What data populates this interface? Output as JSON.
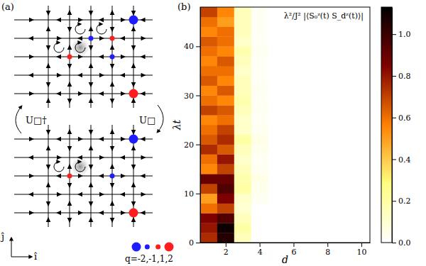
{
  "diagram": {
    "panel_label": "(a)",
    "top_lattice": [
      {
        "col": 4,
        "row": 0,
        "q": -2
      },
      {
        "col": 2,
        "row": 1,
        "q": -1
      },
      {
        "col": 3,
        "row": 1,
        "q": 1
      },
      {
        "col": 1,
        "row": 2,
        "q": 1
      },
      {
        "col": 3,
        "row": 2,
        "q": -1
      },
      {
        "col": 4,
        "row": 4,
        "q": 2
      }
    ],
    "bottom_lattice": [
      {
        "col": 4,
        "row": 0,
        "q": -2
      },
      {
        "col": 3,
        "row": 2,
        "q": -1
      },
      {
        "col": 1,
        "row": 2,
        "q": 1
      },
      {
        "col": 4,
        "row": 4,
        "q": 2
      }
    ],
    "operator_forward": "U□",
    "operator_backward": "U□†",
    "axis_x": "î",
    "axis_y": "ĵ",
    "legend_charges": [
      -2,
      -1,
      1,
      2
    ],
    "legend_text": "q=-2,-1,1,2"
  },
  "chart_data": {
    "type": "heatmap",
    "panel_label": "(b)",
    "annotation": "λ²/J² |⟨S₀ᶻ(t) S_dᶻ(t)⟩|",
    "xlabel": "d",
    "ylabel": "λt",
    "x_edges": [
      0.5,
      1.5,
      2.5,
      3.5,
      4.5,
      5.5,
      6.5,
      7.5,
      8.5,
      9.5,
      10.5
    ],
    "y_edges": [
      0,
      2,
      4,
      6,
      8,
      10,
      12,
      14,
      16,
      18,
      20,
      22,
      24,
      26,
      28,
      30,
      32,
      34,
      36,
      38,
      40,
      42,
      44,
      46,
      48
    ],
    "cells": [
      [
        0.75,
        1.05,
        0.15,
        0,
        0,
        0,
        0,
        0,
        0,
        0
      ],
      [
        0.8,
        1.1,
        0.2,
        0,
        0,
        0,
        0,
        0,
        0,
        0
      ],
      [
        0.85,
        0.95,
        0.15,
        0,
        0,
        0,
        0,
        0,
        0,
        0
      ],
      [
        0.6,
        0.7,
        0.1,
        0,
        0,
        0,
        0,
        0,
        0,
        0
      ],
      [
        0.5,
        0.85,
        0.12,
        0.03,
        0,
        0,
        0,
        0,
        0,
        0
      ],
      [
        0.7,
        0.95,
        0.2,
        0.04,
        0,
        0,
        0,
        0,
        0,
        0
      ],
      [
        0.9,
        0.9,
        0.18,
        0.05,
        0,
        0,
        0,
        0,
        0,
        0
      ],
      [
        0.55,
        0.7,
        0.15,
        0.03,
        0,
        0,
        0,
        0,
        0,
        0
      ],
      [
        0.6,
        0.8,
        0.12,
        0.02,
        0,
        0,
        0,
        0,
        0,
        0
      ],
      [
        0.75,
        0.65,
        0.15,
        0.04,
        0,
        0,
        0,
        0,
        0,
        0
      ],
      [
        0.65,
        0.75,
        0.2,
        0.05,
        0,
        0,
        0,
        0,
        0,
        0
      ],
      [
        0.6,
        0.7,
        0.12,
        0.03,
        0,
        0,
        0,
        0,
        0,
        0
      ],
      [
        0.55,
        0.6,
        0.12,
        0.02,
        0,
        0,
        0,
        0,
        0,
        0
      ],
      [
        0.7,
        0.65,
        0.15,
        0.03,
        0,
        0,
        0,
        0,
        0,
        0
      ],
      [
        0.6,
        0.55,
        0.18,
        0.02,
        0,
        0,
        0,
        0,
        0,
        0
      ],
      [
        0.55,
        0.65,
        0.15,
        0.03,
        0,
        0,
        0,
        0,
        0,
        0
      ],
      [
        0.65,
        0.55,
        0.15,
        0.02,
        0,
        0,
        0,
        0,
        0,
        0
      ],
      [
        0.6,
        0.6,
        0.12,
        0.02,
        0,
        0,
        0,
        0,
        0,
        0
      ],
      [
        0.55,
        0.65,
        0.15,
        0.02,
        0,
        0,
        0,
        0,
        0,
        0
      ],
      [
        0.6,
        0.55,
        0.18,
        0.03,
        0,
        0,
        0,
        0,
        0,
        0
      ],
      [
        0.65,
        0.6,
        0.12,
        0.02,
        0,
        0,
        0,
        0,
        0,
        0
      ],
      [
        0.55,
        0.6,
        0.15,
        0.02,
        0,
        0,
        0,
        0,
        0,
        0
      ],
      [
        0.6,
        0.5,
        0.15,
        0.02,
        0,
        0,
        0,
        0,
        0,
        0
      ],
      [
        0.7,
        0.55,
        0.15,
        0.02,
        0,
        0,
        0,
        0,
        0,
        0
      ]
    ],
    "xlim": [
      0.5,
      10.5
    ],
    "ylim": [
      0,
      48
    ],
    "xticks": [
      2,
      4,
      6,
      8,
      10
    ],
    "yticks": [
      0,
      10,
      20,
      30,
      40
    ],
    "colorbar": {
      "range": [
        0,
        1.13
      ],
      "ticks": [
        {
          "value": 0,
          "label": "0.0"
        },
        {
          "value": 0.2,
          "label": "0.2"
        },
        {
          "value": 0.4,
          "label": "0.4"
        },
        {
          "value": 0.6,
          "label": "0.6"
        },
        {
          "value": 0.8,
          "label": "0.8"
        },
        {
          "value": 1,
          "label": "1.0"
        }
      ]
    }
  }
}
